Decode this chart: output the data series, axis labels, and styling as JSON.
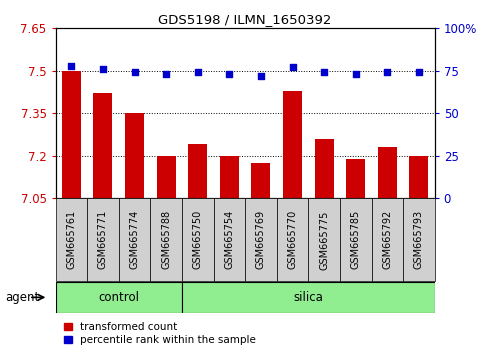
{
  "title": "GDS5198 / ILMN_1650392",
  "samples": [
    "GSM665761",
    "GSM665771",
    "GSM665774",
    "GSM665788",
    "GSM665750",
    "GSM665754",
    "GSM665769",
    "GSM665770",
    "GSM665775",
    "GSM665785",
    "GSM665792",
    "GSM665793"
  ],
  "groups": [
    "control",
    "control",
    "control",
    "control",
    "silica",
    "silica",
    "silica",
    "silica",
    "silica",
    "silica",
    "silica",
    "silica"
  ],
  "transformed_count": [
    7.5,
    7.42,
    7.35,
    7.2,
    7.24,
    7.2,
    7.175,
    7.43,
    7.26,
    7.19,
    7.23,
    7.2
  ],
  "percentile_rank": [
    78,
    76,
    74,
    73,
    74,
    73,
    72,
    77,
    74,
    73,
    74,
    74
  ],
  "ylim_left": [
    7.05,
    7.65
  ],
  "ylim_right": [
    0,
    100
  ],
  "yticks_left": [
    7.05,
    7.2,
    7.35,
    7.5,
    7.65
  ],
  "yticks_right": [
    0,
    25,
    50,
    75,
    100
  ],
  "ytick_labels_left": [
    "7.05",
    "7.2",
    "7.35",
    "7.5",
    "7.65"
  ],
  "ytick_labels_right": [
    "0",
    "25",
    "50",
    "75",
    "100%"
  ],
  "hlines": [
    7.2,
    7.35,
    7.5
  ],
  "bar_color": "#cc0000",
  "dot_color": "#0000cc",
  "bar_width": 0.6,
  "control_color": "#90ee90",
  "silica_color": "#90ee90",
  "agent_label": "agent",
  "legend_bar_label": "transformed count",
  "legend_dot_label": "percentile rank within the sample",
  "left_tick_color": "#cc0000",
  "right_tick_color": "#0000cc",
  "sample_box_color": "#d0d0d0",
  "n_control": 4,
  "n_silica": 8
}
